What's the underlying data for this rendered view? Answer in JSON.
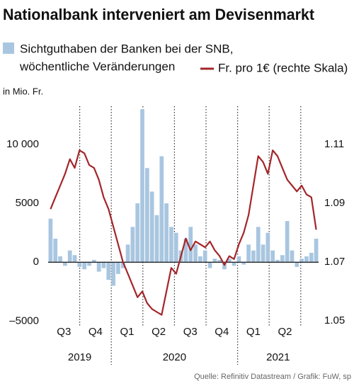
{
  "chart_data": {
    "type": "bar_line",
    "title": "Nationalbank interveniert am Devisenmarkt",
    "axis_label": "in Mio. Fr.",
    "source": "Quelle: Refinitiv Datastream / Grafik: FuW, sp",
    "quarters": [
      "Q3",
      "Q4",
      "Q1",
      "Q2",
      "Q3",
      "Q4",
      "Q1",
      "Q2"
    ],
    "years": [
      "2019",
      "2020",
      "2021"
    ],
    "series": [
      {
        "name": "Sichtguthaben der Banken bei der SNB,\nwöchentliche Veränderungen",
        "name_lines": [
          "Sichtguthaben der Banken bei der SNB,",
          "wöchentliche Veränderungen"
        ],
        "color": "#a9c6e0",
        "kind": "bar",
        "values": [
          3700,
          2000,
          500,
          -300,
          1000,
          600,
          -400,
          -600,
          -300,
          200,
          -800,
          -500,
          -1500,
          -2000,
          -1000,
          -500,
          1500,
          3000,
          5000,
          13000,
          8000,
          6000,
          4000,
          9000,
          5000,
          3000,
          2500,
          1000,
          2000,
          3000,
          1500,
          500,
          1000,
          -500,
          300,
          200,
          -600,
          300,
          -300,
          500,
          -200,
          1500,
          1000,
          3000,
          1500,
          2500,
          1000,
          200,
          600,
          3500,
          1000,
          -400,
          300,
          500,
          800,
          2000
        ]
      },
      {
        "name": "Fr. pro 1€ (rechte Skala)",
        "color": "#a3262a",
        "kind": "line",
        "axis": "y2",
        "values": [
          1.088,
          1.092,
          1.096,
          1.1,
          1.105,
          1.102,
          1.108,
          1.107,
          1.103,
          1.102,
          1.098,
          1.092,
          1.088,
          1.082,
          1.076,
          1.07,
          1.066,
          1.062,
          1.058,
          1.06,
          1.056,
          1.054,
          1.053,
          1.052,
          1.06,
          1.068,
          1.066,
          1.072,
          1.078,
          1.074,
          1.077,
          1.076,
          1.075,
          1.077,
          1.074,
          1.072,
          1.069,
          1.072,
          1.071,
          1.076,
          1.08,
          1.086,
          1.096,
          1.106,
          1.104,
          1.1,
          1.108,
          1.106,
          1.102,
          1.098,
          1.096,
          1.094,
          1.096,
          1.093,
          1.092,
          1.081
        ]
      }
    ],
    "ylim": [
      -5400,
      13250
    ],
    "yticks": [
      {
        "value": -5000,
        "label": "–5000"
      },
      0,
      5000,
      {
        "value": 10000,
        "label": "10 000"
      }
    ],
    "y2lim": [
      1.0483,
      1.123
    ],
    "y2ticks": [
      1.05,
      1.07,
      1.09,
      1.11
    ]
  }
}
